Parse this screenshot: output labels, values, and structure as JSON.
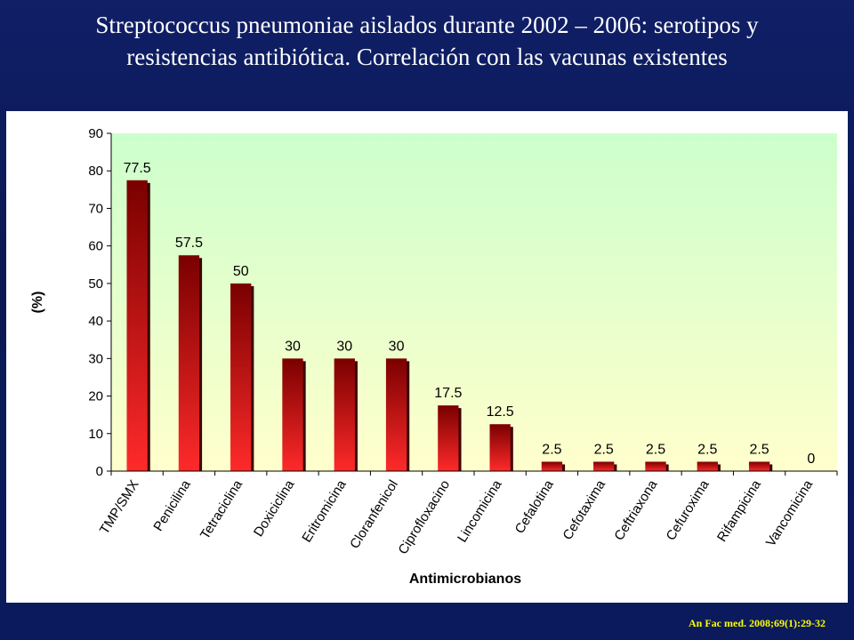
{
  "title": "Streptococcus pneumoniae aislados durante 2002 – 2006: serotipos y resistencias antibiótica. Correlación con las vacunas existentes",
  "source": "An Fac med. 2008;69(1):29-32",
  "chart_data": {
    "type": "bar",
    "title": "",
    "xlabel": "Antimicrobianos",
    "ylabel": "(%)",
    "ylim": [
      0,
      90
    ],
    "yticks": [
      0,
      10,
      20,
      30,
      40,
      50,
      60,
      70,
      80,
      90
    ],
    "grid": false,
    "categories": [
      "TMP/SMX",
      "Penicilina",
      "Tetraciclina",
      "Doxiciclina",
      "Eritromicina",
      "Cloranfenicol",
      "Ciprofloxacino",
      "Lincomicina",
      "Cefalotina",
      "Cefotaxima",
      "Ceftriaxona",
      "Cefuroxima",
      "Rifampicina",
      "Vancomicina"
    ],
    "values": [
      77.5,
      57.5,
      50,
      30,
      30,
      30,
      17.5,
      12.5,
      2.5,
      2.5,
      2.5,
      2.5,
      2.5,
      0
    ],
    "data_labels": [
      "77.5",
      "57.5",
      "50",
      "30",
      "30",
      "30",
      "17.5",
      "12.5",
      "2.5",
      "2.5",
      "2.5",
      "2.5",
      "2.5",
      "0"
    ],
    "colors": {
      "bar_top": "#7a0000",
      "bar_bottom": "#ff2a2a",
      "bar_shadow": "#3a0000",
      "plot_top": "#ccffcc",
      "plot_bottom": "#ffffcc"
    }
  }
}
